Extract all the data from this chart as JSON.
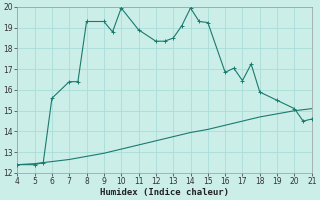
{
  "xlabel": "Humidex (Indice chaleur)",
  "bg_color": "#cceee8",
  "grid_color": "#aaddd8",
  "line_color": "#1a7a6e",
  "xlim": [
    4,
    21
  ],
  "ylim": [
    12,
    20
  ],
  "xticks": [
    4,
    5,
    6,
    7,
    8,
    9,
    10,
    11,
    12,
    13,
    14,
    15,
    16,
    17,
    18,
    19,
    20,
    21
  ],
  "yticks": [
    12,
    13,
    14,
    15,
    16,
    17,
    18,
    19,
    20
  ],
  "curve1_x": [
    4,
    5,
    5.5,
    6,
    7,
    7.5,
    8,
    9,
    9.5,
    10,
    11,
    12,
    12.5,
    13,
    13.5,
    14,
    14.5,
    15,
    16,
    16.5,
    17,
    17.5,
    18,
    19,
    20,
    20.5,
    21
  ],
  "curve1_y": [
    12.4,
    12.4,
    12.5,
    15.6,
    16.4,
    16.4,
    19.3,
    19.3,
    18.8,
    19.95,
    18.9,
    18.35,
    18.35,
    18.5,
    19.1,
    19.95,
    19.3,
    19.25,
    16.85,
    17.05,
    16.45,
    17.25,
    15.9,
    15.5,
    15.1,
    14.5,
    14.6
  ],
  "curve2_x": [
    4,
    5,
    6,
    7,
    8,
    9,
    10,
    11,
    12,
    13,
    14,
    15,
    16,
    17,
    18,
    19,
    20,
    21
  ],
  "curve2_y": [
    12.4,
    12.45,
    12.55,
    12.65,
    12.8,
    12.95,
    13.15,
    13.35,
    13.55,
    13.75,
    13.95,
    14.1,
    14.3,
    14.5,
    14.7,
    14.85,
    15.0,
    15.1
  ],
  "marker_x": [
    4,
    5,
    5.5,
    6,
    7,
    7.5,
    8,
    9,
    9.5,
    10,
    11,
    12,
    12.5,
    13,
    13.5,
    14,
    14.5,
    15,
    16,
    16.5,
    17,
    17.5,
    18,
    19,
    20,
    20.5,
    21
  ],
  "marker_y": [
    12.4,
    12.4,
    12.5,
    15.6,
    16.4,
    16.4,
    19.3,
    19.3,
    18.8,
    19.95,
    18.9,
    18.35,
    18.35,
    18.5,
    19.1,
    19.95,
    19.3,
    19.25,
    16.85,
    17.05,
    16.45,
    17.25,
    15.9,
    15.5,
    15.1,
    14.5,
    14.6
  ],
  "tick_fontsize": 5.5,
  "xlabel_fontsize": 6.5,
  "spine_color": "#999999"
}
